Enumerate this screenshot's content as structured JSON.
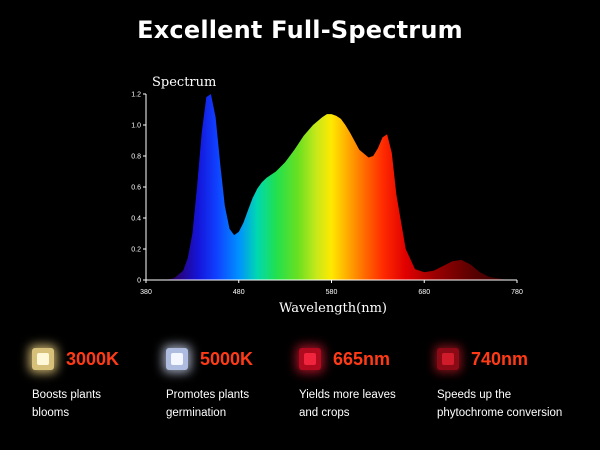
{
  "title": "Excellent Full-Spectrum",
  "chart_data": {
    "type": "area",
    "title": "Spectrum",
    "xlabel": "Wavelength(nm)",
    "ylabel": "",
    "xlim": [
      380,
      780
    ],
    "ylim": [
      0,
      1.2
    ],
    "x_ticks": [
      "380",
      "480",
      "580",
      "680",
      "780"
    ],
    "y_ticks": [
      "0",
      "0.2",
      "0.4",
      "0.6",
      "0.8",
      "1.0",
      "1.2"
    ],
    "grid": false,
    "series": [
      {
        "x": [
          380,
          400,
          410,
          420,
          425,
          430,
          435,
          440,
          445,
          450,
          455,
          460,
          465,
          470,
          475,
          480,
          485,
          490,
          495,
          500,
          505,
          510,
          520,
          530,
          540,
          550,
          560,
          570,
          575,
          580,
          585,
          590,
          595,
          600,
          610,
          620,
          625,
          630,
          635,
          640,
          645,
          650,
          660,
          670,
          680,
          690,
          700,
          710,
          720,
          730,
          740,
          750,
          760,
          770,
          780
        ],
        "y": [
          0,
          0,
          0.01,
          0.06,
          0.14,
          0.3,
          0.6,
          0.95,
          1.18,
          1.2,
          1.05,
          0.75,
          0.48,
          0.33,
          0.29,
          0.31,
          0.37,
          0.45,
          0.53,
          0.59,
          0.63,
          0.66,
          0.7,
          0.76,
          0.84,
          0.93,
          1.0,
          1.05,
          1.07,
          1.07,
          1.06,
          1.04,
          1.0,
          0.95,
          0.84,
          0.79,
          0.8,
          0.85,
          0.92,
          0.94,
          0.82,
          0.55,
          0.2,
          0.07,
          0.05,
          0.06,
          0.09,
          0.12,
          0.13,
          0.1,
          0.05,
          0.02,
          0.01,
          0,
          0
        ]
      }
    ]
  },
  "features": [
    {
      "title": "3000K",
      "desc_lines": [
        "Boosts plants",
        "blooms"
      ]
    },
    {
      "title": "5000K",
      "desc_lines": [
        "Promotes plants",
        "germination"
      ]
    },
    {
      "title": "665nm",
      "desc_lines": [
        "Yields more leaves",
        "and crops"
      ]
    },
    {
      "title": "740nm",
      "desc_lines": [
        "Speeds up the",
        "phytochrome conversion"
      ]
    }
  ]
}
